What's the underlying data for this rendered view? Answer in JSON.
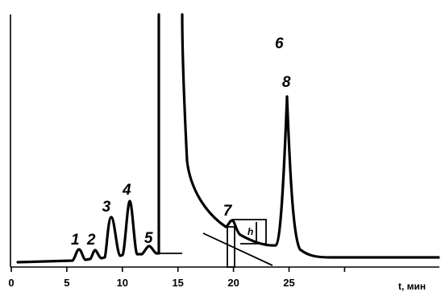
{
  "chart_data": {
    "type": "line",
    "xlabel": "t, мин",
    "ylabel": "",
    "xlim": [
      0,
      33
    ],
    "xticks": [
      {
        "x": 0,
        "label": "0"
      },
      {
        "x": 5,
        "label": "5"
      },
      {
        "x": 10,
        "label": "10"
      },
      {
        "x": 15,
        "label": "15"
      },
      {
        "x": 20,
        "label": "20"
      },
      {
        "x": 25,
        "label": "25"
      },
      {
        "x": 30,
        "label": ""
      }
    ],
    "grid": false,
    "peaks": [
      {
        "label": "1",
        "retention_time": 5.9
      },
      {
        "label": "2",
        "retention_time": 7.2
      },
      {
        "label": "3",
        "retention_time": 8.7
      },
      {
        "label": "4",
        "retention_time": 10.4
      },
      {
        "label": "5",
        "retention_time": 12.2
      },
      {
        "label": "6",
        "retention_time": 13.3
      },
      {
        "label": "7",
        "retention_time": 19.6
      },
      {
        "label": "8",
        "retention_time": 24.9
      }
    ],
    "annotation": {
      "label": "h"
    }
  }
}
